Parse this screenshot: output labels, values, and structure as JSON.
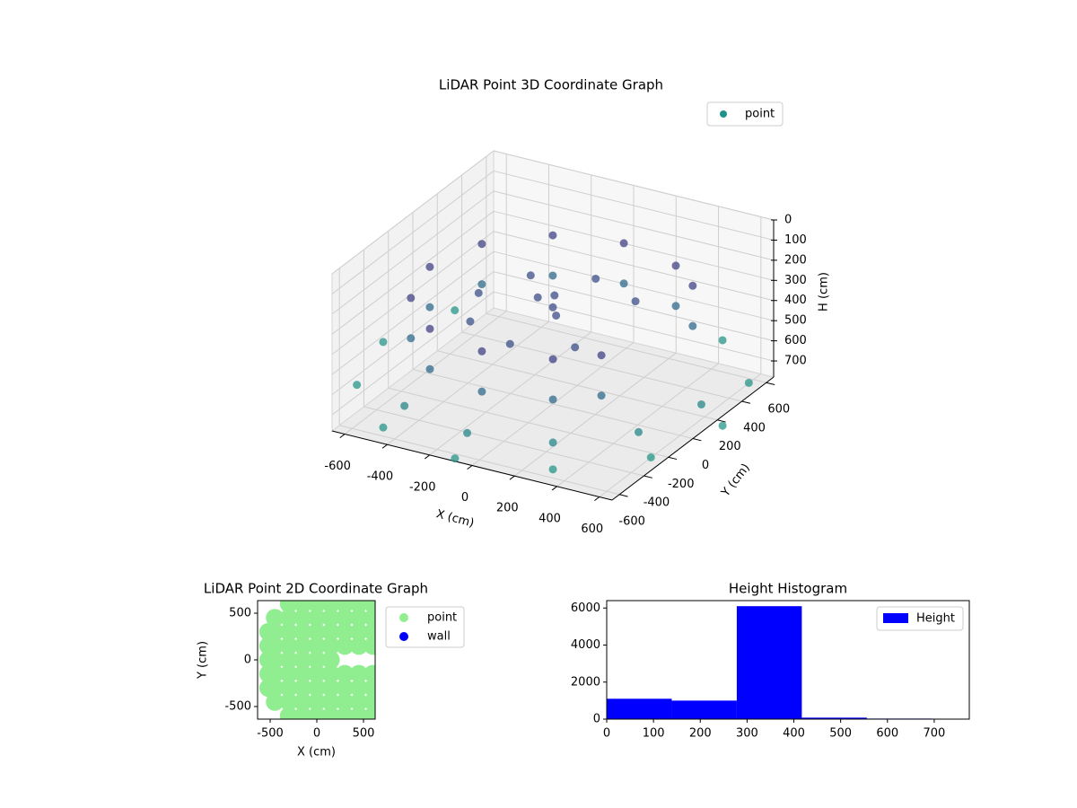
{
  "chart_data": [
    {
      "type": "scatter3d",
      "title": "LiDAR Point 3D Coordinate Graph",
      "x_label": "X (cm)",
      "y_label": "Y (cm)",
      "z_label": "H (cm)",
      "xlim": [
        -660,
        660
      ],
      "ylim": [
        -660,
        660
      ],
      "zlim": [
        0,
        780
      ],
      "z_inverted": true,
      "xticks": [
        -600,
        -400,
        -200,
        0,
        200,
        400,
        600
      ],
      "yticks": [
        -600,
        -400,
        -200,
        0,
        200,
        400,
        600
      ],
      "zticks": [
        0,
        100,
        200,
        300,
        400,
        500,
        600,
        700
      ],
      "cmap": "viridis",
      "grid": true,
      "legend": "upper right",
      "series": [
        {
          "name": "point",
          "color": "#21918c",
          "x": [
            290,
            0,
            -290,
            -502,
            -580,
            -502,
            -290,
            0,
            290,
            444,
            444,
            290,
            0,
            -290,
            -502,
            -580,
            -502,
            -290,
            0,
            290,
            444,
            444,
            0,
            -350,
            0,
            -247,
            -247,
            247,
            247,
            -100,
            0,
            50,
            -50,
            800,
            693,
            693,
            400,
            400,
            0,
            -400,
            -693,
            -800,
            -693,
            700,
            606,
            350,
            0,
            -350
          ],
          "y": [
            502,
            580,
            502,
            290,
            0,
            -290,
            -502,
            -580,
            -502,
            373,
            -373,
            502,
            580,
            502,
            290,
            0,
            -290,
            -502,
            -580,
            -502,
            373,
            -373,
            350,
            0,
            -350,
            247,
            -247,
            247,
            -247,
            50,
            0,
            -60,
            100,
            0,
            400,
            -400,
            -693,
            693,
            -800,
            -693,
            -400,
            0,
            400,
            0,
            -350,
            -606,
            -700,
            -606
          ],
          "h": [
            250,
            250,
            250,
            250,
            250,
            250,
            250,
            250,
            250,
            250,
            250,
            450,
            450,
            450,
            450,
            450,
            450,
            450,
            450,
            450,
            450,
            450,
            320,
            320,
            320,
            320,
            320,
            320,
            320,
            300,
            300,
            300,
            300,
            680,
            680,
            680,
            680,
            680,
            680,
            680,
            680,
            680,
            680,
            600,
            600,
            600,
            600,
            600
          ]
        }
      ]
    },
    {
      "type": "scatter",
      "title": "LiDAR Point 2D Coordinate Graph",
      "x_label": "X (cm)",
      "y_label": "Y (cm)",
      "xlim": [
        -635,
        625
      ],
      "ylim": [
        -635,
        635
      ],
      "xticks": [
        -500,
        0,
        500
      ],
      "yticks": [
        -500,
        0,
        500
      ],
      "legend": "outside",
      "series": [
        {
          "name": "point",
          "color": "#90ee90",
          "x": [
            -520,
            -520,
            -520,
            -520,
            -520,
            -450,
            -450,
            -450,
            -450,
            -450,
            -450,
            -450,
            -300,
            -300,
            -300,
            -300,
            -300,
            -300,
            -300,
            -300,
            -300,
            -150,
            -150,
            -150,
            -150,
            -150,
            -150,
            -150,
            -150,
            -150,
            0,
            0,
            0,
            0,
            0,
            0,
            0,
            0,
            0,
            150,
            150,
            150,
            150,
            150,
            150,
            150,
            150,
            150,
            300,
            300,
            300,
            300,
            300,
            300,
            300,
            300,
            450,
            450,
            450,
            450,
            450,
            450,
            450,
            450,
            600,
            600,
            600,
            600,
            600,
            600,
            600,
            600
          ],
          "y": [
            -300,
            -150,
            0,
            150,
            300,
            -450,
            -300,
            -150,
            0,
            150,
            300,
            450,
            -600,
            -450,
            -300,
            -150,
            0,
            150,
            300,
            450,
            600,
            -600,
            -450,
            -300,
            -150,
            0,
            150,
            300,
            450,
            600,
            -600,
            -450,
            -300,
            -150,
            0,
            150,
            300,
            450,
            600,
            -600,
            -450,
            -300,
            -150,
            0,
            150,
            300,
            450,
            600,
            -600,
            -450,
            -300,
            -150,
            150,
            300,
            450,
            600,
            -600,
            -450,
            -300,
            -150,
            150,
            300,
            450,
            600,
            -600,
            -450,
            -300,
            -150,
            150,
            300,
            450,
            600
          ]
        },
        {
          "name": "wall",
          "color": "#0000ff",
          "x": [],
          "y": []
        }
      ]
    },
    {
      "type": "histogram",
      "title": "Height Histogram",
      "bins": [
        0,
        139,
        278,
        417,
        556,
        695,
        834
      ],
      "counts": [
        1100,
        1000,
        6100,
        80,
        30,
        20
      ],
      "name": "Height",
      "color": "#0000ff",
      "xlim": [
        0,
        775
      ],
      "ylim": [
        0,
        6400
      ],
      "xticks": [
        0,
        100,
        200,
        300,
        400,
        500,
        600,
        700
      ],
      "yticks": [
        0,
        2000,
        4000,
        6000
      ],
      "legend": "upper right"
    }
  ]
}
